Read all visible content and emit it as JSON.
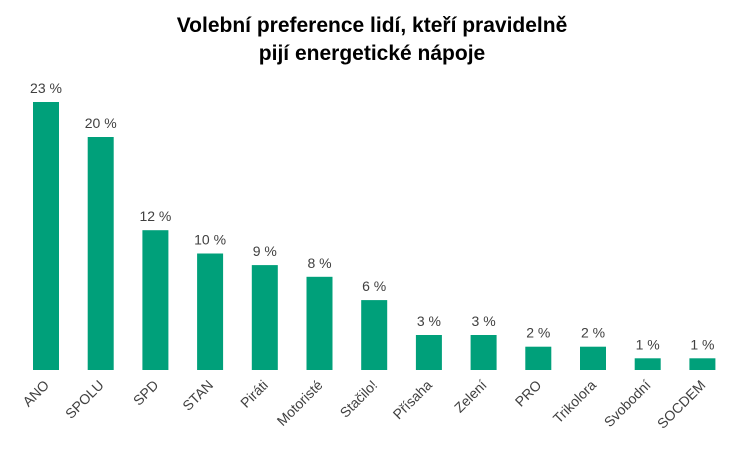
{
  "chart_data": {
    "type": "bar",
    "title_lines": [
      "Volební preference lidí, kteří pravidelně",
      "pijí energetické nápoje"
    ],
    "xlabel": "",
    "ylabel": "",
    "ylim": [
      0,
      23
    ],
    "grid": false,
    "legend": "none",
    "bar_color": "#00A07A",
    "categories": [
      "ANO",
      "SPOLU",
      "SPD",
      "STAN",
      "Piráti",
      "Motoristé",
      "Stačilo!",
      "Přísaha",
      "Zelení",
      "PRO",
      "Trikolora",
      "Svobodní",
      "SOCDEM"
    ],
    "values": [
      23,
      20,
      12,
      10,
      9,
      8,
      6,
      3,
      3,
      2,
      2,
      1,
      1
    ],
    "data_labels": [
      "23 %",
      "20 %",
      "12 %",
      "10 %",
      "9 %",
      "8 %",
      "6 %",
      "3 %",
      "3 %",
      "2 %",
      "2 %",
      "1 %",
      "1 %"
    ]
  }
}
